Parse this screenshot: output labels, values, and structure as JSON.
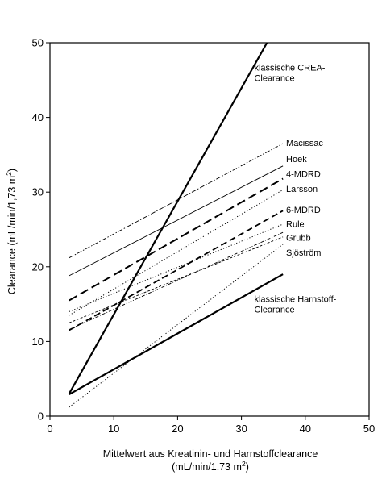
{
  "chart_data": {
    "type": "line",
    "xlabel": "Mittelwert aus Kreatinin- und Harnstoffclearance",
    "xlabel_unit_prefix": "(mL/min/1.73 m",
    "xlabel_unit_sup": "2",
    "xlabel_unit_suffix": ")",
    "ylabel_prefix": "Clearance (mL/min/1,73 m",
    "ylabel_sup": "2",
    "ylabel_suffix": ")",
    "xlim": [
      0,
      50
    ],
    "ylim": [
      0,
      50
    ],
    "xticks": [
      0,
      10,
      20,
      30,
      40,
      50
    ],
    "yticks": [
      0,
      10,
      20,
      30,
      40,
      50
    ],
    "grid": false,
    "legend": "none",
    "series": [
      {
        "name": "klassische CREA-Clearance",
        "style": "thick-solid",
        "x": [
          3,
          34
        ],
        "y": [
          3,
          50
        ]
      },
      {
        "name": "Macissac",
        "style": "dash-dot",
        "x": [
          3,
          36.5
        ],
        "y": [
          21.2,
          36.5
        ]
      },
      {
        "name": "Hoek",
        "style": "thin-solid",
        "x": [
          3,
          36.5
        ],
        "y": [
          18.8,
          33.5
        ]
      },
      {
        "name": "4-MDRD",
        "style": "long-dash",
        "x": [
          3,
          36.5
        ],
        "y": [
          15.5,
          31.8
        ]
      },
      {
        "name": "Larsson",
        "style": "dotted",
        "x": [
          3,
          36.5
        ],
        "y": [
          13.5,
          30.3
        ]
      },
      {
        "name": "6-MDRD",
        "style": "medium-dash",
        "x": [
          3,
          36.5
        ],
        "y": [
          11.5,
          27.5
        ]
      },
      {
        "name": "Rule",
        "style": "dotted",
        "x": [
          3,
          36.5
        ],
        "y": [
          14.0,
          25.7
        ]
      },
      {
        "name": "Grubb",
        "style": "dash-dot-fine",
        "x": [
          3,
          36.5
        ],
        "y": [
          11.6,
          24.6
        ]
      },
      {
        "name": "Sjöström",
        "style": "fine-dash",
        "x": [
          3,
          36.5
        ],
        "y": [
          12.5,
          24.0
        ]
      },
      {
        "name": "klassische Harnstoff-Clearance",
        "style": "thick-solid",
        "x": [
          3,
          36.5
        ],
        "y": [
          2.9,
          19.0
        ]
      },
      {
        "name": "",
        "style": "dotted",
        "x": [
          3,
          36.5
        ],
        "y": [
          1.2,
          23.0
        ]
      }
    ],
    "annotations": [
      {
        "lines": [
          "klassische CREA-",
          "Clearance"
        ],
        "x": 32,
        "y": 46.3
      },
      {
        "lines": [
          "Macissac"
        ],
        "x": 37,
        "y": 36.2
      },
      {
        "lines": [
          "Hoek"
        ],
        "x": 37,
        "y": 34.0
      },
      {
        "lines": [
          "4-MDRD"
        ],
        "x": 37,
        "y": 32.0
      },
      {
        "lines": [
          "Larsson"
        ],
        "x": 37,
        "y": 30.0
      },
      {
        "lines": [
          "6-MDRD"
        ],
        "x": 37,
        "y": 27.2
      },
      {
        "lines": [
          "Rule"
        ],
        "x": 37,
        "y": 25.3
      },
      {
        "lines": [
          "Grubb"
        ],
        "x": 37,
        "y": 23.5
      },
      {
        "lines": [
          "Sjöström"
        ],
        "x": 37,
        "y": 21.5
      },
      {
        "lines": [
          "klassische Harnstoff-",
          "Clearance"
        ],
        "x": 32,
        "y": 15.3
      }
    ]
  }
}
